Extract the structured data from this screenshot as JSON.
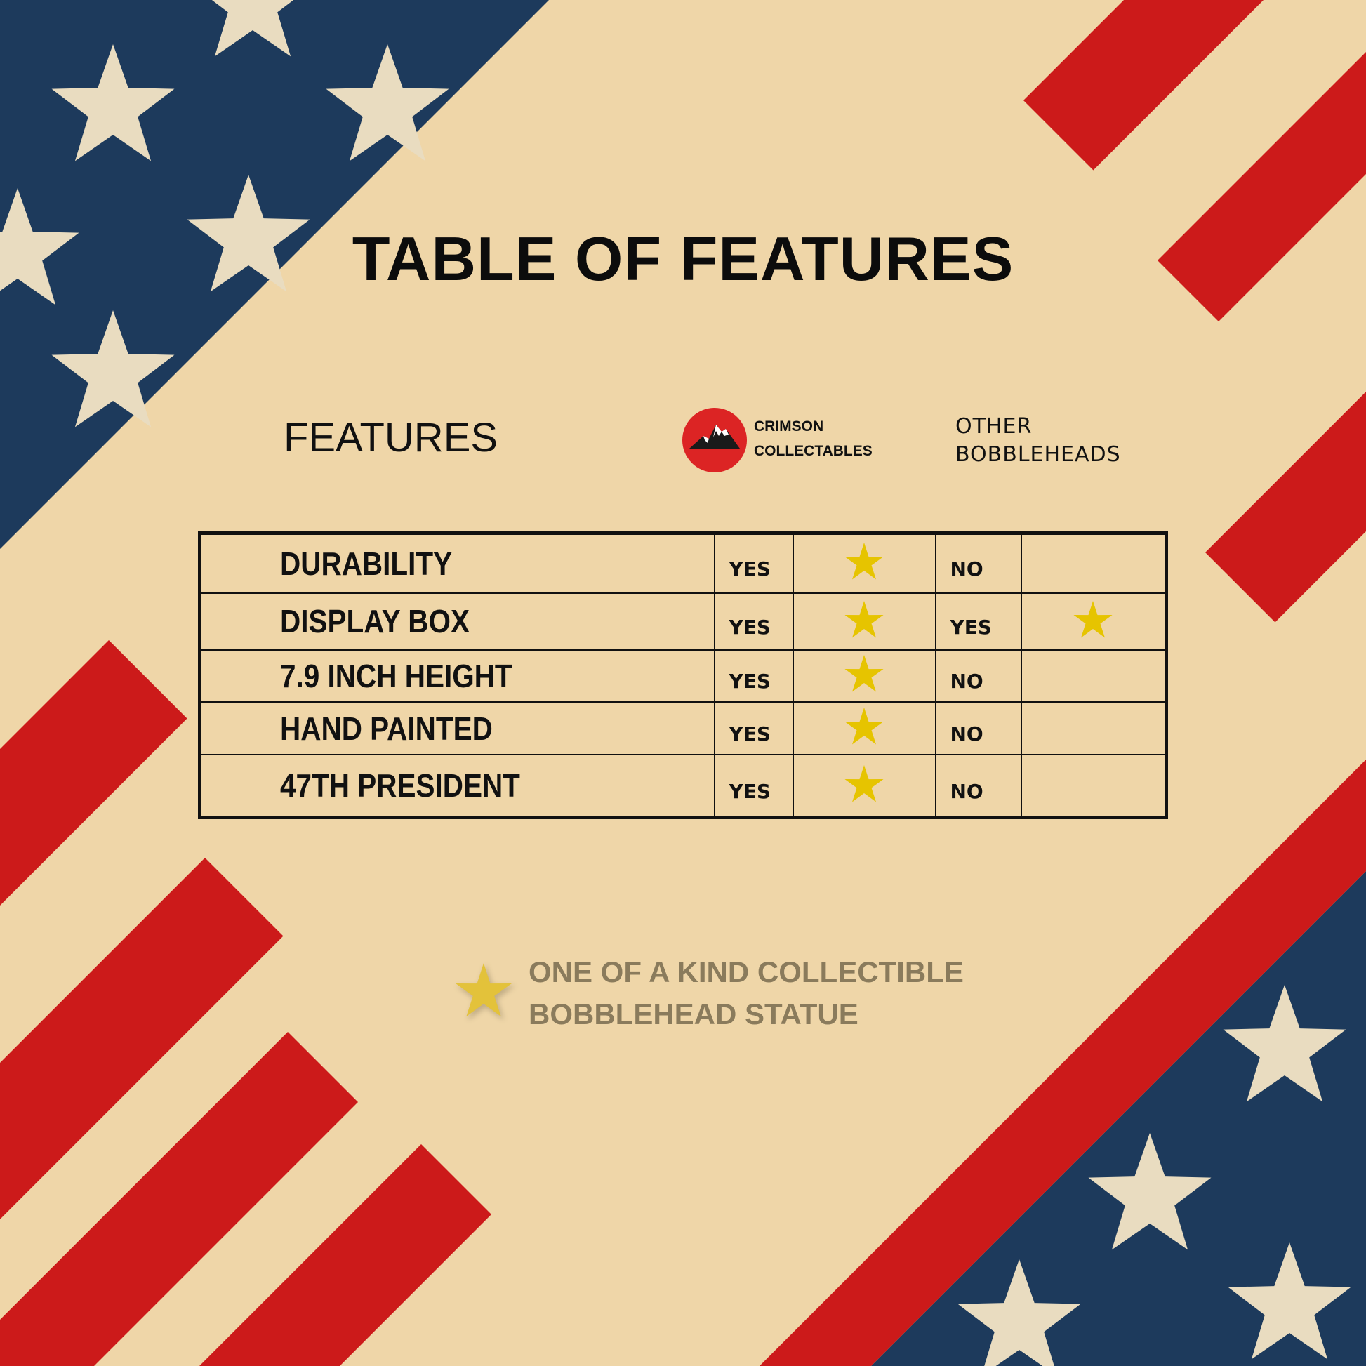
{
  "title": "TABLE OF FEATURES",
  "header": {
    "features_label": "FEATURES",
    "brand": {
      "line1": "CRIMSON",
      "line2": "COLLECTABLES",
      "logo_icon": "mountain-icon"
    },
    "other": {
      "line1": "OTHER",
      "line2": "BOBBLEHEADS"
    }
  },
  "rows": [
    {
      "feature": "DURABILITY",
      "crimson": "YES",
      "crimson_star": true,
      "other": "NO",
      "other_star": false
    },
    {
      "feature": "DISPLAY BOX",
      "crimson": "YES",
      "crimson_star": true,
      "other": "YES",
      "other_star": true
    },
    {
      "feature": "7.9 INCH HEIGHT",
      "crimson": "YES",
      "crimson_star": true,
      "other": "NO",
      "other_star": false
    },
    {
      "feature": "HAND PAINTED",
      "crimson": "YES",
      "crimson_star": true,
      "other": "NO",
      "other_star": false
    },
    {
      "feature": "47TH PRESIDENT",
      "crimson": "YES",
      "crimson_star": true,
      "other": "NO",
      "other_star": false
    }
  ],
  "legend": {
    "line1": "ONE OF A KIND COLLECTIBLE",
    "line2": "BOBBLEHEAD STATUE",
    "icon": "star-icon"
  },
  "colors": {
    "background": "#efd6a8",
    "red": "#cc1a1a",
    "blue": "#1d3a5c",
    "star_yellow": "#e6c400",
    "logo_red": "#dc2424"
  }
}
